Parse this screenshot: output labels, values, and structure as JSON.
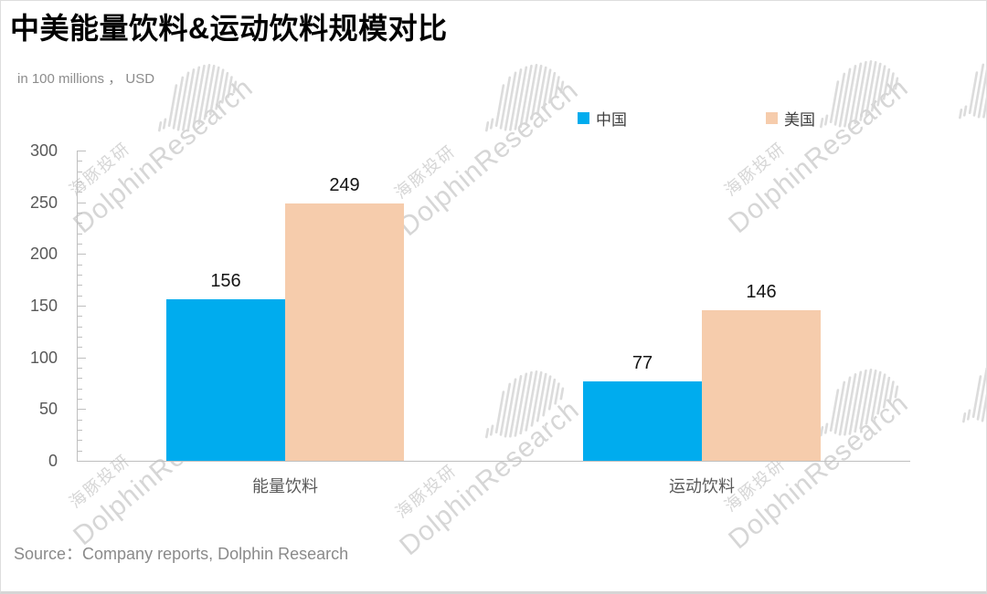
{
  "title": "中美能量饮料&运动饮料规模对比",
  "subtitle": "in 100 millions ， USD",
  "source": "Source：Company reports, Dolphin Research",
  "watermark": {
    "cn": "海豚投研",
    "en": "DolphinResearch"
  },
  "colors": {
    "china_blue": "#00ACEE",
    "us_peach": "#F6CCAC",
    "axis_gray": "#BFBFBF",
    "label_gray": "#595959",
    "watermark_gray": "#D6D6D6"
  },
  "chart_data": {
    "type": "bar",
    "title": "中美能量饮料&运动饮料规模对比",
    "units_note": "in 100 millions ， USD",
    "categories": [
      "能量饮料",
      "运动饮料"
    ],
    "series": [
      {
        "name": "中国",
        "color": "#00ACEE",
        "values": [
          156,
          77
        ]
      },
      {
        "name": "美国",
        "color": "#F6CCAC",
        "values": [
          249,
          146
        ]
      }
    ],
    "ylim": [
      0,
      300
    ],
    "ytick_major": 50,
    "ytick_minor": 10,
    "grid": false,
    "legend_position": "top-center",
    "value_labels": true
  }
}
